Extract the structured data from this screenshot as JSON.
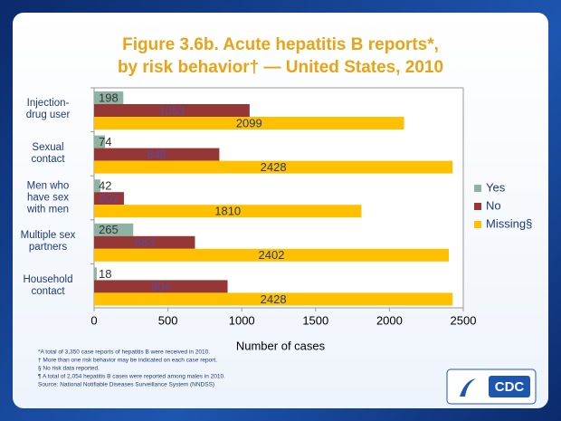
{
  "chart_data": {
    "type": "hbar",
    "title": "Figure 3.6b. Acute hepatitis B reports*,",
    "subtitle": "by risk behavior† — United States, 2010",
    "x_label": "Number of cases",
    "categories": [
      "Injection-\ndrug user",
      "Sexual\ncontact",
      "Men who\nhave sex\nwith men",
      "Multiple sex\npartners",
      "Household\ncontact"
    ],
    "series": [
      {
        "name": "Yes",
        "color": "#8fb3a3",
        "values": [
          198,
          74,
          42,
          265,
          18
        ]
      },
      {
        "name": "No",
        "color": "#953735",
        "values": [
          1053,
          848,
          202,
          683,
          904
        ]
      },
      {
        "name": "Missing§",
        "color": "#ffc000",
        "values": [
          2099,
          2428,
          1810,
          2402,
          2428
        ]
      }
    ],
    "xlim": [
      0,
      2500
    ],
    "xticks": [
      0,
      500,
      1000,
      1500,
      2000,
      2500
    ],
    "legend": "right",
    "footnotes": [
      "*A total of 3,350 case reports of hepatitis B were received in 2010.",
      "† More than one risk behavior may be indicated on each case report.",
      "§ No risk data reported.",
      "¶ A total of 2,054 hepatitis B cases were reported among males in 2010.",
      "Source: National Notifiable Diseases Surveillance System (NNDSS)"
    ],
    "logo": "CDC"
  }
}
